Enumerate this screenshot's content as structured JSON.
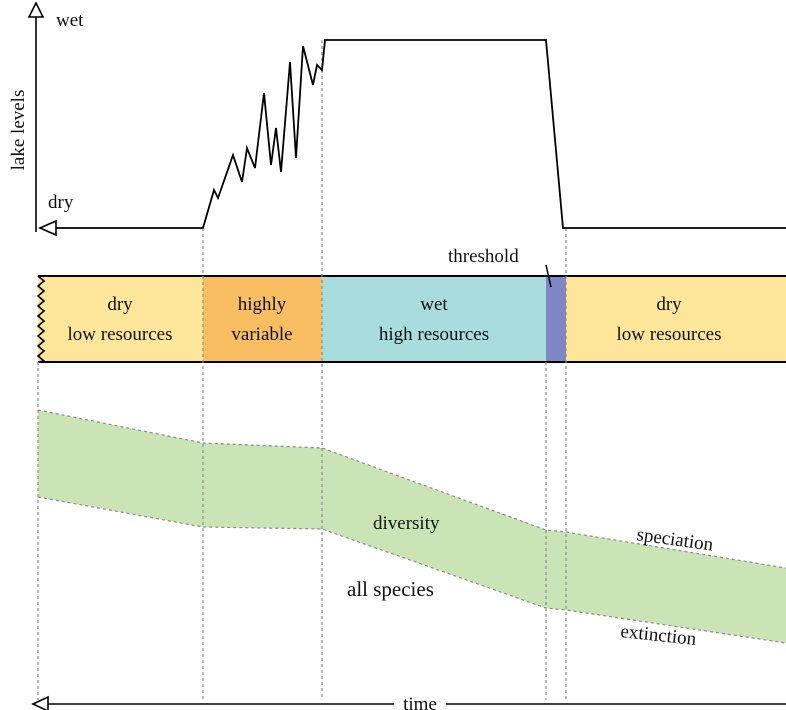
{
  "lake_levels": {
    "axis_label": "lake levels",
    "wet_label": "wet",
    "dry_label": "dry"
  },
  "phases": [
    {
      "line1": "dry",
      "line2": "low resources",
      "color": "#fde59a"
    },
    {
      "line1": "highly",
      "line2": "variable",
      "color": "#f9bd62"
    },
    {
      "line1": "wet",
      "line2": "high resources",
      "color": "#a9dddd"
    },
    {
      "line1": "",
      "line2": "",
      "color": "#7e86c4"
    },
    {
      "line1": "dry",
      "line2": "low resources",
      "color": "#fde59a"
    }
  ],
  "threshold_label": "threshold",
  "diversity": {
    "band_label": "diversity",
    "species_label": "all species",
    "upper_label": "speciation",
    "lower_label": "extinction",
    "color": "#cbe4b5"
  },
  "time_label": "time"
}
